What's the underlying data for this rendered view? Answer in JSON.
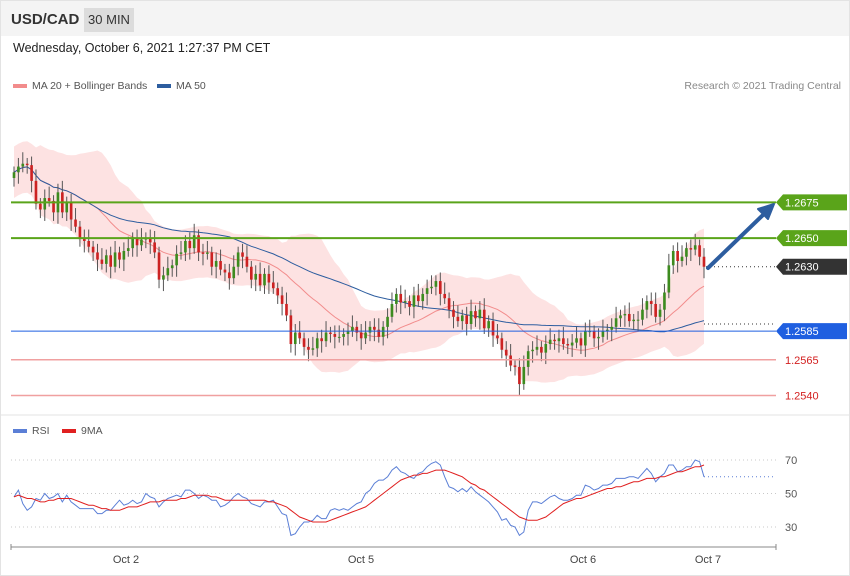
{
  "header": {
    "pair": "USD/CAD",
    "timeframe": "30 MIN"
  },
  "timestamp": "Wednesday, October 6, 2021 1:27:37 PM CET",
  "legend": {
    "ma20": {
      "label": "MA 20 + Bollinger Bands",
      "color": "#f28c8c"
    },
    "ma50": {
      "label": "MA 50",
      "color": "#2d5d9f"
    },
    "rsi": {
      "label": "RSI",
      "color": "#5b7fd6"
    },
    "ma9": {
      "label": "9MA",
      "color": "#e02020"
    }
  },
  "credit": "Research © 2021 Trading Central",
  "colors": {
    "up": "#3d8b1f",
    "down": "#cc2222",
    "band": "#fde2e2",
    "resistance": "#5aa41a",
    "pivot": "#1f5fe0",
    "support": "#f0a0a0",
    "last": "#333333"
  },
  "chart_data": {
    "type": "candlestick",
    "title": "USD/CAD",
    "timeframe": "30 MIN",
    "ylim": [
      1.2532,
      1.275
    ],
    "x_ticks": [
      "Oct 2",
      "Oct 5",
      "Oct 6",
      "Oct 7"
    ],
    "price_levels": [
      {
        "label": "1.2675",
        "value": 1.2675,
        "role": "resistance"
      },
      {
        "label": "1.2650",
        "value": 1.265,
        "role": "resistance"
      },
      {
        "label": "1.2630",
        "value": 1.263,
        "role": "last"
      },
      {
        "label": "1.2585",
        "value": 1.2585,
        "role": "pivot"
      },
      {
        "label": "1.2565",
        "value": 1.2565,
        "role": "support"
      },
      {
        "label": "1.2540",
        "value": 1.254,
        "role": "support"
      }
    ],
    "close": [
      1.2696,
      1.27,
      1.2702,
      1.2701,
      1.269,
      1.2674,
      1.267,
      1.2678,
      1.2676,
      1.2668,
      1.2682,
      1.2668,
      1.2675,
      1.2663,
      1.2658,
      1.265,
      1.2648,
      1.2644,
      1.264,
      1.2635,
      1.2632,
      1.2638,
      1.263,
      1.264,
      1.2635,
      1.2641,
      1.2643,
      1.265,
      1.2645,
      1.2649,
      1.265,
      1.2647,
      1.264,
      1.2621,
      1.2624,
      1.2629,
      1.2631,
      1.2639,
      1.264,
      1.2648,
      1.2643,
      1.2652,
      1.264,
      1.2639,
      1.264,
      1.263,
      1.2634,
      1.2628,
      1.2626,
      1.2622,
      1.263,
      1.264,
      1.2637,
      1.263,
      1.2621,
      1.2625,
      1.2617,
      1.2625,
      1.2619,
      1.2615,
      1.261,
      1.2604,
      1.2596,
      1.2576,
      1.2584,
      1.258,
      1.2574,
      1.2572,
      1.2573,
      1.258,
      1.2578,
      1.2584,
      1.2583,
      1.2581,
      1.2581,
      1.2583,
      1.2585,
      1.2588,
      1.2584,
      1.258,
      1.2584,
      1.2588,
      1.2586,
      1.2581,
      1.2588,
      1.2595,
      1.2604,
      1.2611,
      1.2605,
      1.2606,
      1.2602,
      1.261,
      1.2606,
      1.2611,
      1.2615,
      1.2616,
      1.262,
      1.2611,
      1.2608,
      1.26,
      1.2595,
      1.2592,
      1.2596,
      1.259,
      1.2599,
      1.2594,
      1.26,
      1.2587,
      1.2592,
      1.2582,
      1.258,
      1.2572,
      1.2568,
      1.2561,
      1.256,
      1.2548,
      1.256,
      1.2571,
      1.2572,
      1.2574,
      1.257,
      1.2576,
      1.2579,
      1.2578,
      1.258,
      1.2576,
      1.2575,
      1.2577,
      1.258,
      1.2575,
      1.2585,
      1.2585,
      1.258,
      1.2581,
      1.2585,
      1.2586,
      1.2588,
      1.2594,
      1.2596,
      1.2597,
      1.2592,
      1.2593,
      1.2593,
      1.26,
      1.2606,
      1.2604,
      1.2595,
      1.26,
      1.2612,
      1.2631,
      1.2641,
      1.2634,
      1.2637,
      1.2643,
      1.2642,
      1.2645,
      1.2637,
      1.263
    ],
    "rsi": {
      "ylim": [
        20,
        80
      ],
      "levels": [
        30,
        50,
        70
      ],
      "rsi": [
        48,
        52,
        44,
        40,
        42,
        47,
        46,
        50,
        47,
        48,
        50,
        45,
        49,
        45,
        43,
        41,
        41,
        41,
        41,
        38,
        38,
        40,
        40,
        43,
        46,
        43,
        44,
        46,
        44,
        45,
        50,
        48,
        47,
        42,
        45,
        47,
        48,
        49,
        48,
        52,
        52,
        50,
        47,
        49,
        48,
        46,
        46,
        42,
        43,
        45,
        48,
        50,
        48,
        47,
        44,
        43,
        42,
        45,
        45,
        46,
        42,
        38,
        37,
        25,
        26,
        30,
        33,
        33,
        34,
        37,
        35,
        35,
        40,
        41,
        40,
        41,
        40,
        42,
        44,
        45,
        50,
        52,
        56,
        58,
        58,
        60,
        64,
        66,
        63,
        62,
        60,
        59,
        62,
        63,
        66,
        68,
        69,
        67,
        60,
        54,
        53,
        51,
        53,
        51,
        54,
        51,
        49,
        47,
        45,
        42,
        39,
        34,
        35,
        31,
        30,
        25,
        27,
        40,
        45,
        45,
        44,
        46,
        48,
        49,
        47,
        46,
        46,
        47,
        49,
        49,
        55,
        54,
        52,
        53,
        55,
        55,
        56,
        59,
        59,
        59,
        60,
        60,
        59,
        62,
        65,
        62,
        57,
        60,
        62,
        67,
        67,
        63,
        64,
        66,
        66,
        70,
        69,
        60
      ],
      "ma9": [
        48,
        49,
        48,
        47,
        47,
        46,
        45,
        45,
        46,
        46,
        47,
        47,
        47,
        47,
        46,
        45,
        44,
        43,
        43,
        42,
        41,
        41,
        40,
        40,
        40,
        41,
        42,
        42,
        42,
        43,
        44,
        45,
        45,
        45,
        46,
        46,
        46,
        46,
        47,
        47,
        48,
        49,
        49,
        49,
        49,
        48,
        48,
        47,
        46,
        46,
        46,
        46,
        46,
        46,
        46,
        46,
        46,
        46,
        45,
        45,
        44,
        43,
        42,
        40,
        38,
        36,
        35,
        34,
        33,
        33,
        33,
        33,
        34,
        35,
        36,
        37,
        38,
        39,
        40,
        41,
        42,
        44,
        46,
        48,
        50,
        52,
        54,
        56,
        58,
        59,
        60,
        61,
        61,
        62,
        62,
        63,
        64,
        64,
        64,
        63,
        62,
        61,
        60,
        58,
        56,
        55,
        53,
        52,
        50,
        48,
        46,
        44,
        42,
        40,
        38,
        36,
        35,
        34,
        34,
        34,
        35,
        36,
        38,
        40,
        42,
        44,
        45,
        46,
        47,
        47,
        48,
        49,
        50,
        51,
        52,
        53,
        53,
        54,
        54,
        55,
        56,
        57,
        57,
        58,
        59,
        59,
        59,
        60,
        60,
        61,
        62,
        63,
        63,
        64,
        65,
        66,
        66,
        67
      ]
    }
  }
}
